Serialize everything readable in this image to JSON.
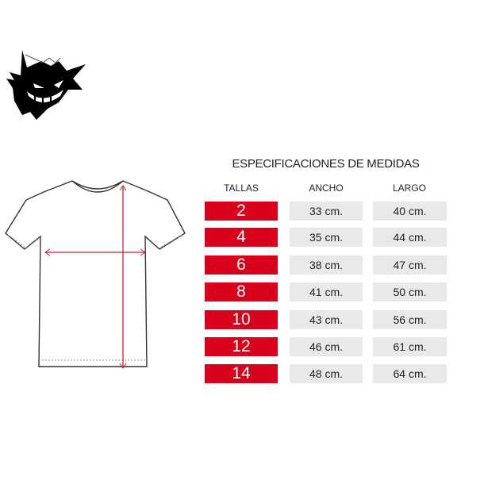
{
  "title": "ESPECIFICACIONES DE MEDIDAS",
  "headers": {
    "tallas": "TALLAS",
    "ancho": "ANCHO",
    "largo": "LARGO"
  },
  "rows": [
    {
      "talla": "2",
      "ancho": "33 cm.",
      "largo": "40 cm."
    },
    {
      "talla": "4",
      "ancho": "35 cm.",
      "largo": "44 cm."
    },
    {
      "talla": "6",
      "ancho": "38 cm.",
      "largo": "47 cm."
    },
    {
      "talla": "8",
      "ancho": "41 cm.",
      "largo": "50 cm."
    },
    {
      "talla": "10",
      "ancho": "43 cm.",
      "largo": "56 cm."
    },
    {
      "talla": "12",
      "ancho": "46 cm.",
      "largo": "61 cm."
    },
    {
      "talla": "14",
      "ancho": "48 cm.",
      "largo": "64 cm."
    }
  ],
  "colors": {
    "accent": "#d9001b",
    "cell": "#e9e9e9"
  },
  "icons": {
    "logo": "ghost-monster-logo",
    "diagram": "tshirt-measure-diagram"
  }
}
